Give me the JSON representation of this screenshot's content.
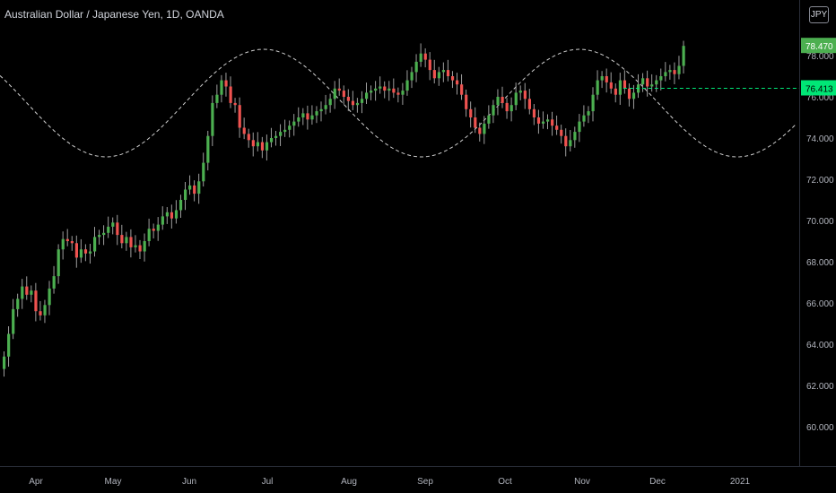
{
  "header": {
    "title": "Australian Dollar / Japanese Yen, 1D, OANDA",
    "currency_button": "JPY"
  },
  "colors": {
    "up": "#26a69a",
    "up_bright": "#4caf50",
    "down": "#ef5350",
    "wick": "#9e9e9e",
    "axis_text": "#b2b5be",
    "cycle": "#cfcfcf",
    "hline": "#00e676",
    "price_tag": "#4caf50"
  },
  "chart_data": {
    "type": "candlestick",
    "ylim": [
      58,
      82
    ],
    "ticks_y": [
      "60.000",
      "62.000",
      "64.000",
      "66.000",
      "68.000",
      "70.000",
      "72.000",
      "74.000",
      "76.000",
      "78.000"
    ],
    "ticks_x": [
      "Apr",
      "May",
      "Jun",
      "Jul",
      "Aug",
      "Sep",
      "Oct",
      "Nov",
      "Dec",
      "2021"
    ],
    "last_price": "78.470",
    "level_line": {
      "value": 76.413,
      "label": "76.413"
    },
    "closes": [
      63.4,
      64.5,
      65.7,
      66.2,
      66.8,
      66.4,
      66.6,
      65.6,
      65.4,
      65.9,
      66.7,
      67.3,
      68.6,
      69.1,
      69.0,
      68.9,
      68.2,
      68.6,
      68.4,
      68.5,
      69.2,
      69.3,
      69.4,
      69.7,
      69.9,
      69.3,
      68.9,
      69.2,
      68.7,
      68.8,
      68.5,
      69.0,
      69.6,
      69.5,
      69.8,
      70.2,
      70.4,
      70.1,
      70.5,
      71.0,
      71.5,
      71.7,
      71.3,
      71.9,
      72.8,
      74.1,
      75.7,
      76.1,
      76.8,
      76.5,
      75.7,
      75.6,
      74.5,
      74.2,
      73.9,
      73.6,
      73.8,
      73.4,
      73.8,
      74.0,
      74.1,
      74.3,
      74.4,
      74.6,
      74.8,
      75.0,
      75.2,
      74.9,
      75.1,
      75.3,
      75.4,
      75.6,
      75.9,
      76.4,
      76.3,
      76.0,
      75.8,
      75.6,
      75.7,
      75.9,
      76.2,
      76.3,
      76.4,
      76.5,
      76.3,
      76.4,
      76.2,
      76.1,
      76.3,
      76.8,
      77.2,
      77.7,
      78.1,
      77.8,
      77.3,
      76.9,
      77.2,
      77.3,
      77.0,
      76.8,
      76.6,
      76.1,
      75.4,
      75.0,
      74.5,
      74.2,
      74.7,
      75.1,
      75.6,
      76.0,
      75.7,
      75.3,
      75.6,
      76.2,
      76.3,
      75.9,
      75.4,
      75.0,
      74.7,
      74.8,
      74.9,
      74.6,
      74.4,
      74.1,
      73.6,
      73.9,
      74.3,
      74.8,
      75.1,
      75.3,
      76.1,
      76.8,
      77.0,
      76.7,
      76.4,
      76.1,
      76.8,
      76.4,
      75.9,
      76.2,
      76.6,
      76.9,
      76.5,
      76.6,
      76.8,
      77.0,
      77.2,
      77.3,
      77.1,
      77.5,
      78.47
    ]
  }
}
